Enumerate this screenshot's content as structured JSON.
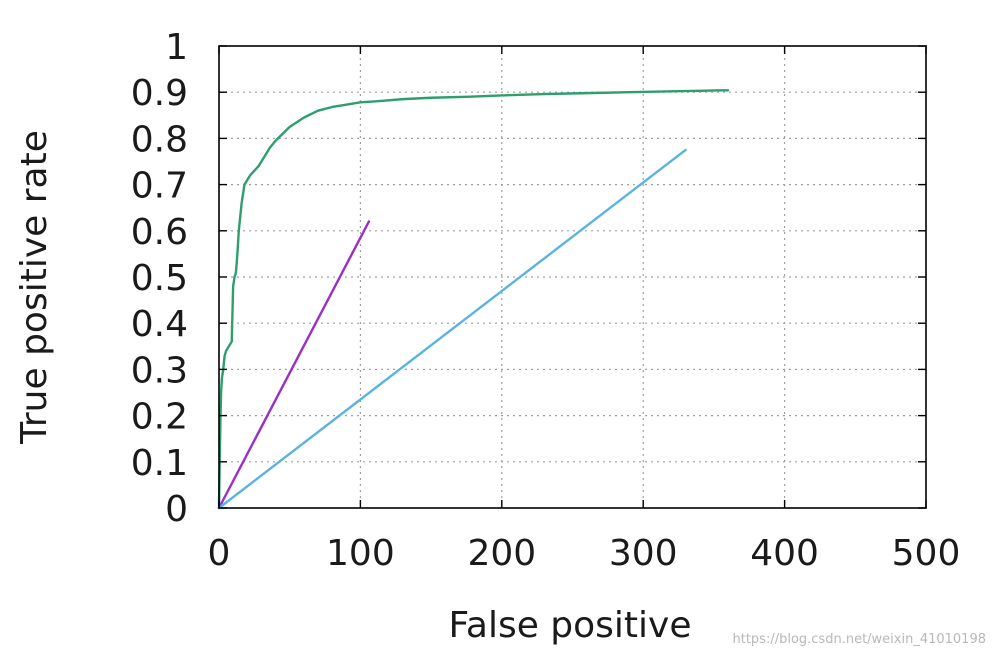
{
  "chart_data": {
    "type": "line",
    "title": "",
    "xlabel": "False positive",
    "ylabel": "True positive rate",
    "xlim": [
      0,
      500
    ],
    "ylim": [
      0,
      1
    ],
    "x_ticks": [
      0,
      100,
      200,
      300,
      400,
      500
    ],
    "y_ticks": [
      0,
      0.1,
      0.2,
      0.3,
      0.4,
      0.5,
      0.6,
      0.7,
      0.8,
      0.9,
      1
    ],
    "x_tick_labels": [
      "0",
      "100",
      "200",
      "300",
      "400",
      "500"
    ],
    "y_tick_labels": [
      "0",
      "0.1",
      "0.2",
      "0.3",
      "0.4",
      "0.5",
      "0.6",
      "0.7",
      "0.8",
      "0.9",
      "1"
    ],
    "grid": true,
    "legend": false,
    "series": [
      {
        "color": "#2e9e6e",
        "x": [
          0,
          0.5,
          1,
          1.5,
          2,
          3,
          4,
          5,
          7,
          9,
          10,
          11,
          12,
          13,
          14,
          15,
          16,
          17,
          18,
          20,
          22,
          25,
          28,
          30,
          33,
          36,
          40,
          45,
          50,
          55,
          60,
          70,
          80,
          90,
          100,
          110,
          130,
          150,
          175,
          200,
          230,
          260,
          290,
          320,
          340,
          355,
          360
        ],
        "y": [
          0,
          0.1,
          0.19,
          0.25,
          0.28,
          0.3,
          0.33,
          0.34,
          0.35,
          0.36,
          0.48,
          0.5,
          0.51,
          0.55,
          0.6,
          0.63,
          0.66,
          0.68,
          0.7,
          0.71,
          0.72,
          0.73,
          0.74,
          0.75,
          0.765,
          0.78,
          0.795,
          0.81,
          0.825,
          0.835,
          0.845,
          0.86,
          0.868,
          0.873,
          0.878,
          0.88,
          0.885,
          0.888,
          0.89,
          0.893,
          0.896,
          0.898,
          0.9,
          0.902,
          0.903,
          0.904,
          0.904
        ]
      },
      {
        "color": "#9a2fc6",
        "x": [
          0,
          106
        ],
        "y": [
          0,
          0.62
        ]
      },
      {
        "color": "#5bb3e0",
        "x": [
          0,
          330
        ],
        "y": [
          0,
          0.775
        ]
      }
    ]
  },
  "watermark": "https://blog.csdn.net/weixin_41010198"
}
